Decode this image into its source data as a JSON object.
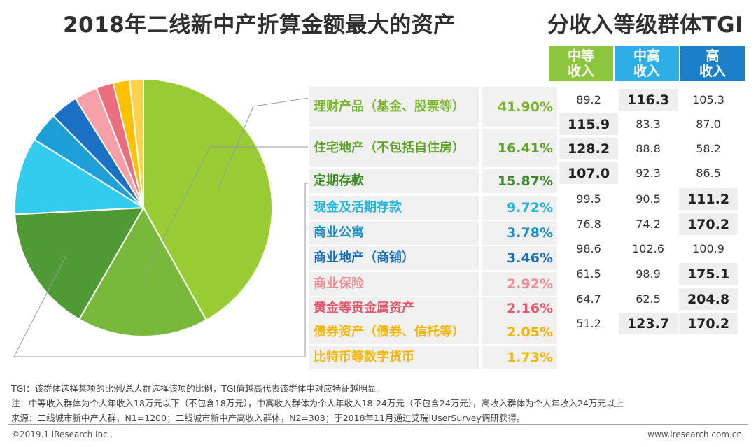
{
  "title": "2018年二线新中产折算金额最大的资产",
  "tgi_title": "分收入等级群体TGI",
  "chart_data": {
    "type": "pie",
    "title": "2018年二线新中产折算金额最大的资产",
    "slices": [
      {
        "label": "理财产品（基金、股票等）",
        "value": 41.9,
        "display": "41.90%",
        "color": "#99cc33",
        "text_color": "#7bb52e"
      },
      {
        "label": "住宅地产（不包括自住房）",
        "value": 16.41,
        "display": "16.41%",
        "color": "#78b83a",
        "text_color": "#5fa22c"
      },
      {
        "label": "定期存款",
        "value": 15.87,
        "display": "15.87%",
        "color": "#4f9a35",
        "text_color": "#3f8a2a"
      },
      {
        "label": "现金及活期存款",
        "value": 9.72,
        "display": "9.72%",
        "color": "#33ccee",
        "text_color": "#22b5de"
      },
      {
        "label": "商业公寓",
        "value": 3.78,
        "display": "3.78%",
        "color": "#1e9fd8",
        "text_color": "#1b8fca"
      },
      {
        "label": "商业地产（商铺）",
        "value": 3.46,
        "display": "3.46%",
        "color": "#1a70c4",
        "text_color": "#1a6fbd"
      },
      {
        "label": "商业保险",
        "value": 2.92,
        "display": "2.92%",
        "color": "#f4a0a6",
        "text_color": "#ee8f96"
      },
      {
        "label": "黄金等贵金属资产",
        "value": 2.16,
        "display": "2.16%",
        "color": "#ec6d7d",
        "text_color": "#e25a6c"
      },
      {
        "label": "债券资产（债券、信托等）",
        "value": 2.05,
        "display": "2.05%",
        "color": "#ffc000",
        "text_color": "#f2b400"
      },
      {
        "label": "比特币等数字货币",
        "value": 1.73,
        "display": "1.73%",
        "color": "#ffd24d",
        "text_color": "#f5b500"
      }
    ]
  },
  "tgi": {
    "headers": [
      "中等\n收入",
      "中高\n收入",
      "高\n收入"
    ],
    "header_colors": [
      "#8cc63f",
      "#2eaee6",
      "#1a7fc8"
    ],
    "rows": [
      {
        "values": [
          "89.2",
          "116.3",
          "105.3"
        ],
        "highlight": 1
      },
      {
        "values": [
          "115.9",
          "83.3",
          "87.0"
        ],
        "highlight": 0
      },
      {
        "values": [
          "128.2",
          "88.8",
          "58.2"
        ],
        "highlight": 0
      },
      {
        "values": [
          "107.0",
          "92.3",
          "86.5"
        ],
        "highlight": 0
      },
      {
        "values": [
          "99.5",
          "90.5",
          "111.2"
        ],
        "highlight": 2
      },
      {
        "values": [
          "76.8",
          "74.2",
          "170.2"
        ],
        "highlight": 2
      },
      {
        "values": [
          "98.6",
          "102.6",
          "100.9"
        ],
        "highlight": -1
      },
      {
        "values": [
          "61.5",
          "98.9",
          "175.1"
        ],
        "highlight": 2
      },
      {
        "values": [
          "64.7",
          "62.5",
          "204.8"
        ],
        "highlight": 2
      },
      {
        "values": [
          "51.2",
          "123.7",
          "170.2"
        ],
        "highlight": [
          1,
          2
        ]
      }
    ]
  },
  "notes": [
    "TGI：该群体选择某项的比例/总人群选择该项的比例，TGI值越高代表该群体中对应特征越明显。",
    "注：中等收入群体为个人年收入18万元以下（不包含18万元），中高收入群体为个人年收入18-24万元（不包含24万元），高收入群体为个人年收入24万元以上",
    "来源：二线城市新中产人群，N1=1200；二线城市新中产高收入群体，N2=308；于2018年11月通过艾瑞iUserSurvey调研获得。"
  ],
  "footer": {
    "left": "©2019.1 iResearch Inc .",
    "right": "www.iresearch.com.cn"
  }
}
